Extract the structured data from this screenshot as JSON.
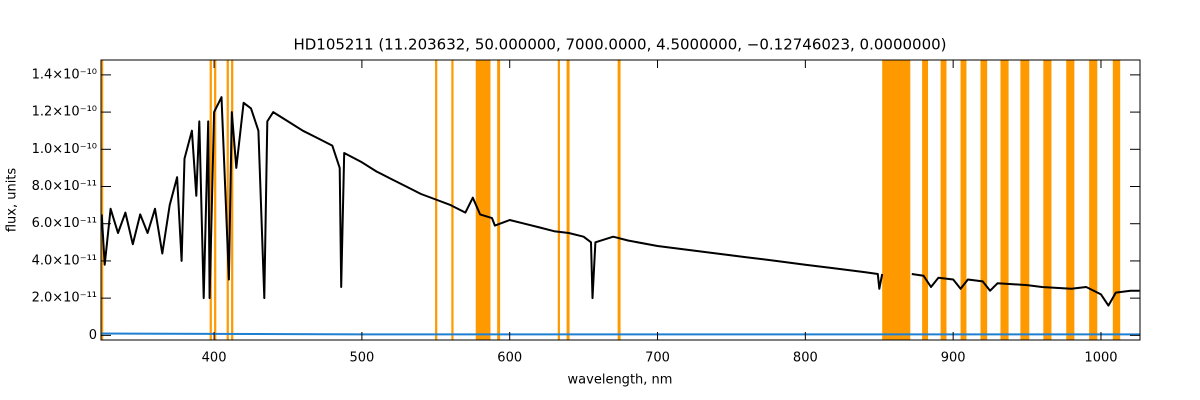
{
  "chart_data": {
    "type": "line",
    "title": "HD105211   (11.203632, 50.000000, 7000.0000, 4.5000000, −0.12746023, 0.0000000)",
    "x_label": "wavelength, nm",
    "y_label": "flux, units",
    "xlim": [
      323.5,
      1026.4
    ],
    "ylim": [
      -2.5e-12,
      1.48e-10
    ],
    "xticks": [
      400,
      500,
      600,
      700,
      800,
      900,
      1000
    ],
    "yticks": [
      0,
      {
        "value": 2e-11,
        "label": "2.0×10⁻¹¹"
      },
      {
        "value": 4e-11,
        "label": "4.0×10⁻¹¹"
      },
      {
        "value": 6e-11,
        "label": "6.0×10⁻¹¹"
      },
      {
        "value": 8e-11,
        "label": "8.0×10⁻¹¹"
      },
      {
        "value": 1e-10,
        "label": "1.0×10⁻¹⁰"
      },
      {
        "value": 1.2e-10,
        "label": "1.2×10⁻¹⁰"
      },
      {
        "value": 1.4e-10,
        "label": "1.4×10⁻¹⁰"
      }
    ],
    "band_color": "#ff9900",
    "bands": [
      [
        323.5,
        325
      ],
      [
        397,
        398.5
      ],
      [
        400,
        401.5
      ],
      [
        408.5,
        410
      ],
      [
        411.5,
        413
      ],
      [
        549.5,
        551
      ],
      [
        560.5,
        562
      ],
      [
        577,
        587
      ],
      [
        591.5,
        593.5
      ],
      [
        632.5,
        634
      ],
      [
        638.5,
        640.5
      ],
      [
        673,
        675
      ],
      [
        852,
        871
      ],
      [
        879,
        883
      ],
      [
        891.5,
        895.5
      ],
      [
        905,
        909
      ],
      [
        918.5,
        923
      ],
      [
        932,
        937.5
      ],
      [
        945.5,
        951.5
      ],
      [
        961,
        966.5
      ],
      [
        976.5,
        982
      ],
      [
        992,
        997.5
      ],
      [
        1008,
        1013
      ]
    ],
    "series": [
      {
        "color": "#1f7fd0",
        "x": [
          323.5,
          500,
          700,
          900,
          1026.4
        ],
        "values": [
          1e-12,
          5e-13,
          5e-13,
          5e-13,
          5e-13
        ]
      },
      {
        "color": "#000000",
        "x": [
          324,
          326,
          330,
          335,
          340,
          345,
          350,
          355,
          360,
          365,
          370,
          375,
          378,
          380,
          385,
          388,
          390,
          393,
          396,
          397,
          400,
          405,
          408,
          410,
          412,
          415,
          420,
          425,
          430,
          434,
          436,
          440,
          450,
          460,
          470,
          480,
          485,
          486,
          488,
          500,
          510,
          520,
          530,
          540,
          550,
          560,
          570,
          575,
          580,
          588,
          590,
          600,
          610,
          620,
          630,
          640,
          650,
          655,
          656,
          658,
          670,
          680,
          700,
          720,
          740,
          760,
          780,
          800,
          820,
          840,
          849,
          850,
          852,
          860,
          872,
          880,
          885,
          890,
          900,
          905,
          910,
          920,
          925,
          930,
          950,
          960,
          980,
          990,
          1000,
          1005,
          1010,
          1020,
          1026
        ],
        "values": [
          6.5e-11,
          3.8e-11,
          6.8e-11,
          5.5e-11,
          6.6e-11,
          4.9e-11,
          6.5e-11,
          5.5e-11,
          6.8e-11,
          4.4e-11,
          7e-11,
          8.5e-11,
          4e-11,
          9.5e-11,
          1.1e-10,
          7.5e-11,
          1.15e-10,
          2e-11,
          1.15e-10,
          2e-11,
          1.2e-10,
          1.28e-10,
          7e-11,
          3e-11,
          1.2e-10,
          9e-11,
          1.25e-10,
          1.22e-10,
          1.1e-10,
          2e-11,
          1.15e-10,
          1.2e-10,
          1.15e-10,
          1.1e-10,
          1.06e-10,
          1.02e-10,
          9e-11,
          2.6e-11,
          9.8e-11,
          9.3e-11,
          8.8e-11,
          8.4e-11,
          8e-11,
          7.6e-11,
          7.3e-11,
          7e-11,
          6.6e-11,
          7.4e-11,
          6.5e-11,
          6.3e-11,
          5.9e-11,
          6.2e-11,
          6e-11,
          5.8e-11,
          5.6e-11,
          5.5e-11,
          5.3e-11,
          5e-11,
          2e-11,
          5e-11,
          5.3e-11,
          5.1e-11,
          4.8e-11,
          4.6e-11,
          4.4e-11,
          4.2e-11,
          4e-11,
          3.8e-11,
          3.6e-11,
          3.4e-11,
          3.3e-11,
          2.5e-11,
          3.3e-11,
          null,
          3.3e-11,
          3.2e-11,
          2.6e-11,
          3.1e-11,
          3e-11,
          2.5e-11,
          3e-11,
          2.9e-11,
          2.4e-11,
          2.8e-11,
          2.7e-11,
          2.6e-11,
          2.5e-11,
          2.6e-11,
          2.2e-11,
          1.6e-11,
          2.3e-11,
          2.4e-11,
          2.4e-11
        ]
      }
    ]
  }
}
